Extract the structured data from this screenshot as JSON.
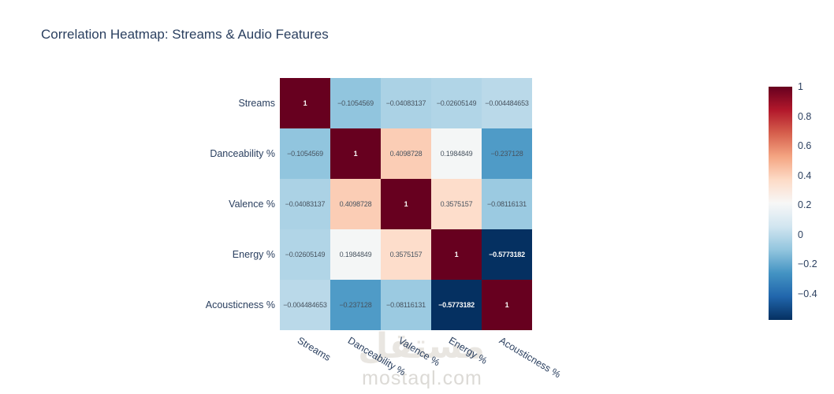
{
  "title": "Correlation Heatmap: Streams & Audio Features",
  "watermark": {
    "logo": "مستقل",
    "text": "mostaql.com"
  },
  "chart_data": {
    "type": "heatmap",
    "title": "Correlation Heatmap: Streams & Audio Features",
    "categories": [
      "Streams",
      "Danceability %",
      "Valence %",
      "Energy %",
      "Acousticness %"
    ],
    "matrix": [
      [
        1,
        -0.1054569,
        -0.04083137,
        -0.02605149,
        -0.004484653
      ],
      [
        -0.1054569,
        1,
        0.4098728,
        0.1984849,
        -0.237128
      ],
      [
        -0.04083137,
        0.4098728,
        1,
        0.3575157,
        -0.08116131
      ],
      [
        -0.02605149,
        0.1984849,
        0.3575157,
        1,
        -0.5773182
      ],
      [
        -0.004484653,
        -0.237128,
        -0.08116131,
        -0.5773182,
        1
      ]
    ],
    "cell_labels": [
      [
        "1",
        "−0.1054569",
        "−0.04083137",
        "−0.02605149",
        "−0.004484653"
      ],
      [
        "−0.1054569",
        "1",
        "0.4098728",
        "0.1984849",
        "−0.237128"
      ],
      [
        "−0.04083137",
        "0.4098728",
        "1",
        "0.3575157",
        "−0.08116131"
      ],
      [
        "−0.02605149",
        "0.1984849",
        "0.3575157",
        "1",
        "−0.5773182"
      ],
      [
        "−0.004484653",
        "−0.237128",
        "−0.08116131",
        "−0.5773182",
        "1"
      ]
    ],
    "zmin": -0.5773182,
    "zmax": 1,
    "colorscale_name": "RdBu_r",
    "colorscale_stops": [
      [
        5,
        48,
        97
      ],
      [
        33,
        102,
        172
      ],
      [
        67,
        147,
        195
      ],
      [
        146,
        197,
        222
      ],
      [
        209,
        229,
        240
      ],
      [
        247,
        247,
        247
      ],
      [
        253,
        219,
        199
      ],
      [
        244,
        165,
        130
      ],
      [
        214,
        96,
        77
      ],
      [
        178,
        24,
        43
      ],
      [
        103,
        0,
        31
      ]
    ],
    "colorbar": {
      "tick_labels": [
        "1",
        "0.8",
        "0.6",
        "0.4",
        "0.2",
        "0",
        "−0.2",
        "−0.4"
      ],
      "tick_values": [
        1,
        0.8,
        0.6,
        0.4,
        0.2,
        0,
        -0.2,
        -0.4
      ],
      "position": "right"
    },
    "legend": "none",
    "grid": "off",
    "text_color_dark": "#47535f",
    "text_color_light": "#fbfbfb"
  }
}
